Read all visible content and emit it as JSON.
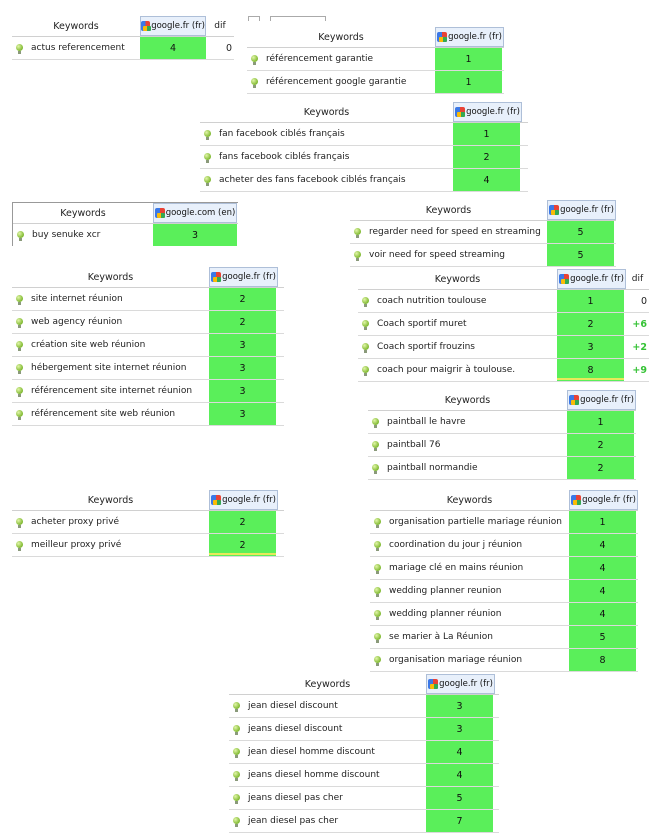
{
  "colors": {
    "rank_bg": "#5aef5a",
    "engine_header_bg": "#e8f0fb",
    "dif_positive": "#35c235"
  },
  "tables": [
    {
      "id": "t1",
      "keyword_header": "Keywords",
      "engine": "google.fr (fr)",
      "dif_header": "dif",
      "rows": [
        {
          "keyword": "actus referencement",
          "rank": "4",
          "dif": "0"
        }
      ]
    },
    {
      "id": "t2",
      "keyword_header": "Keywords",
      "engine": "google.fr (fr)",
      "rows": [
        {
          "keyword": "référencement garantie",
          "rank": "1"
        },
        {
          "keyword": "référencement google garantie",
          "rank": "1"
        }
      ]
    },
    {
      "id": "t3",
      "keyword_header": "Keywords",
      "engine": "google.fr (fr)",
      "rows": [
        {
          "keyword": "fan facebook ciblés français",
          "rank": "1"
        },
        {
          "keyword": "fans facebook ciblés français",
          "rank": "2"
        },
        {
          "keyword": "acheter des fans facebook ciblés français",
          "rank": "4"
        }
      ]
    },
    {
      "id": "t4",
      "keyword_header": "Keywords",
      "engine": "google.com (en)",
      "rows": [
        {
          "keyword": "buy senuke xcr",
          "rank": "3"
        }
      ]
    },
    {
      "id": "t5",
      "keyword_header": "Keywords",
      "engine": "google.fr (fr)",
      "rows": [
        {
          "keyword": "regarder need for speed en streaming",
          "rank": "5"
        },
        {
          "keyword": "voir need for speed streaming",
          "rank": "5"
        }
      ]
    },
    {
      "id": "t6",
      "keyword_header": "Keywords",
      "engine": "google.fr (fr)",
      "rows": [
        {
          "keyword": "site internet réunion",
          "rank": "2"
        },
        {
          "keyword": "web agency réunion",
          "rank": "2"
        },
        {
          "keyword": "création site web réunion",
          "rank": "3"
        },
        {
          "keyword": "hébergement site internet réunion",
          "rank": "3"
        },
        {
          "keyword": "référencement site internet réunion",
          "rank": "3"
        },
        {
          "keyword": "référencement site web réunion",
          "rank": "3"
        }
      ]
    },
    {
      "id": "t7",
      "keyword_header": "Keywords",
      "engine": "google.fr (fr)",
      "dif_header": "dif",
      "rows": [
        {
          "keyword": "coach nutrition toulouse",
          "rank": "1",
          "dif": "0"
        },
        {
          "keyword": "Coach sportif muret",
          "rank": "2",
          "dif": "+6"
        },
        {
          "keyword": "Coach sportif frouzins",
          "rank": "3",
          "dif": "+2"
        },
        {
          "keyword": "coach pour maigrir à toulouse.",
          "rank": "8",
          "dif": "+9"
        }
      ]
    },
    {
      "id": "t8",
      "keyword_header": "Keywords",
      "engine": "google.fr (fr)",
      "rows": [
        {
          "keyword": "paintball le havre",
          "rank": "1"
        },
        {
          "keyword": "paintball 76",
          "rank": "2"
        },
        {
          "keyword": "paintball normandie",
          "rank": "2"
        }
      ]
    },
    {
      "id": "t9",
      "keyword_header": "Keywords",
      "engine": "google.fr (fr)",
      "rows": [
        {
          "keyword": "acheter proxy privé",
          "rank": "2"
        },
        {
          "keyword": "meilleur proxy privé",
          "rank": "2"
        }
      ]
    },
    {
      "id": "t10",
      "keyword_header": "Keywords",
      "engine": "google.fr (fr)",
      "rows": [
        {
          "keyword": "organisation partielle mariage réunion",
          "rank": "1"
        },
        {
          "keyword": "coordination du jour j réunion",
          "rank": "4"
        },
        {
          "keyword": "mariage clé en mains réunion",
          "rank": "4"
        },
        {
          "keyword": "wedding planner reunion",
          "rank": "4"
        },
        {
          "keyword": "wedding planner réunion",
          "rank": "4"
        },
        {
          "keyword": "se marier à La Réunion",
          "rank": "5"
        },
        {
          "keyword": "organisation mariage réunion",
          "rank": "8"
        }
      ]
    },
    {
      "id": "t11",
      "keyword_header": "Keywords",
      "engine": "google.fr (fr)",
      "rows": [
        {
          "keyword": "jean diesel discount",
          "rank": "3"
        },
        {
          "keyword": "jeans diesel discount",
          "rank": "3"
        },
        {
          "keyword": "jean diesel homme discount",
          "rank": "4"
        },
        {
          "keyword": "jeans diesel homme discount",
          "rank": "4"
        },
        {
          "keyword": "jeans diesel pas cher",
          "rank": "5"
        },
        {
          "keyword": "jean diesel pas cher",
          "rank": "7"
        }
      ]
    }
  ]
}
